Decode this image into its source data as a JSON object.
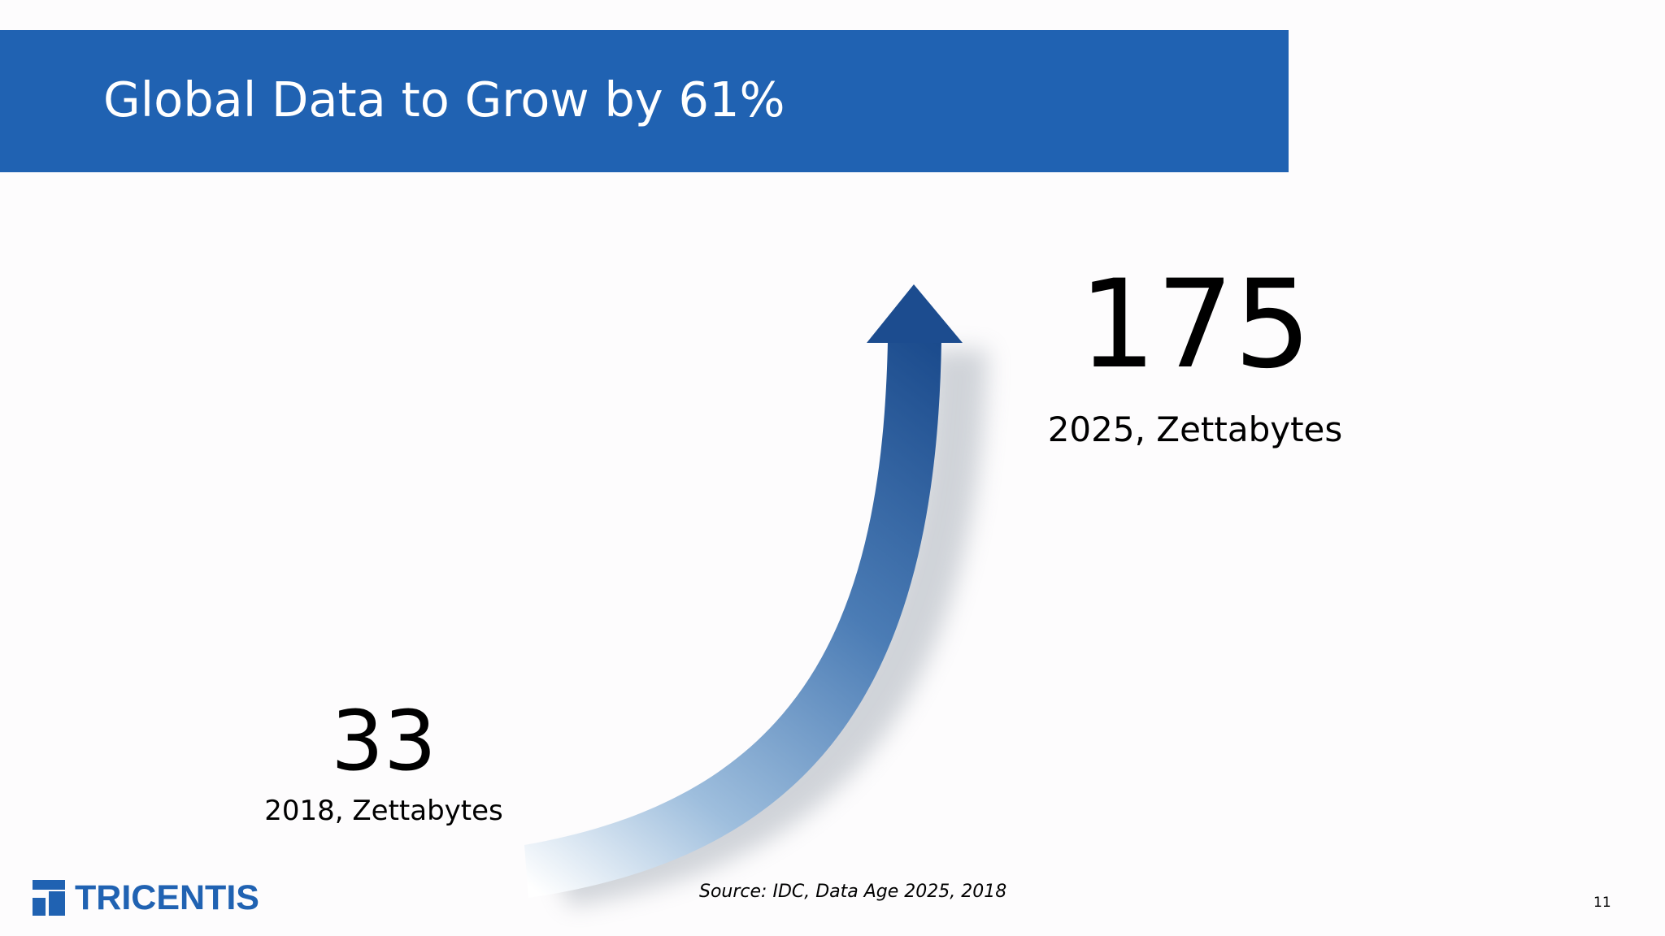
{
  "slide": {
    "title": "Global Data to Grow by 61%",
    "page_number": "11",
    "source": "Source: IDC, Data Age 2025, 2018"
  },
  "stats": {
    "end_value": "175",
    "end_caption": "2025, Zettabytes",
    "start_value": "33",
    "start_caption": "2018, Zettabytes"
  },
  "logo": {
    "text": "TRICENTIS"
  },
  "colors": {
    "title_bar": "#2062b2",
    "arrow_dark": "#1c4c8f",
    "arrow_light": "#e6eef7"
  },
  "icons": {
    "arrow": "growth-arrow-icon",
    "logo_mark": "tricentis-logo-icon"
  }
}
